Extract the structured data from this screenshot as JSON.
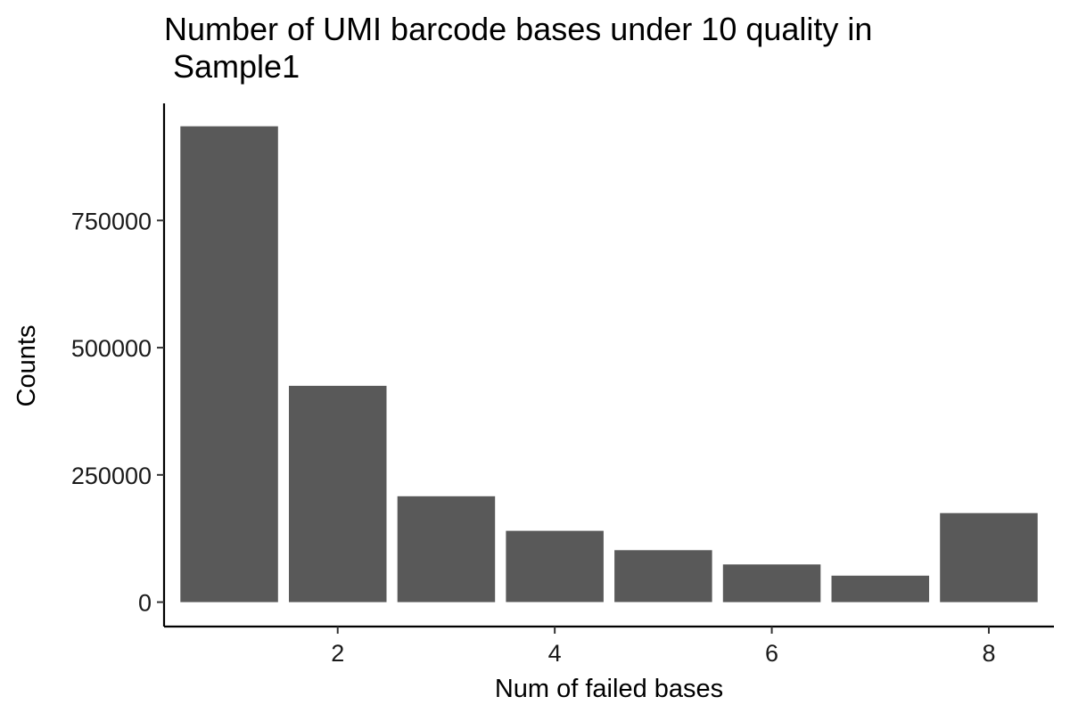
{
  "chart_data": {
    "type": "bar",
    "title": "Number of UMI barcode bases under 10 quality in\n Sample1",
    "xlabel": "Num of failed bases",
    "ylabel": "Counts",
    "categories": [
      1,
      2,
      3,
      4,
      5,
      6,
      7,
      8
    ],
    "values": [
      935000,
      425000,
      208000,
      140000,
      102000,
      74000,
      52000,
      175000
    ],
    "x_ticks": [
      2,
      4,
      6,
      8
    ],
    "y_ticks": [
      0,
      250000,
      500000,
      750000
    ],
    "xlim": [
      0.4,
      8.6
    ],
    "ylim": [
      -48000,
      980000
    ],
    "bar_color": "#595959",
    "grid": false,
    "legend": "none"
  }
}
